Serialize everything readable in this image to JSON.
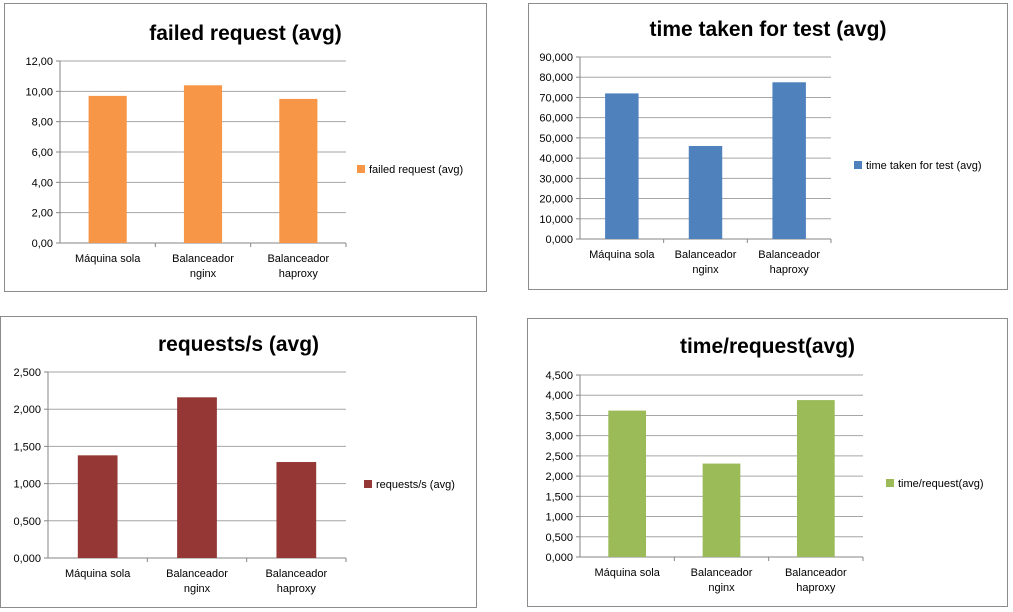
{
  "chart_data": [
    {
      "type": "bar",
      "title": "failed request (avg)",
      "categories": [
        [
          "Máquina sola"
        ],
        [
          "Balanceador",
          "nginx"
        ],
        [
          "Balanceador",
          "haproxy"
        ]
      ],
      "series": [
        {
          "name": "failed request (avg)",
          "values": [
            9.7,
            10.4,
            9.5
          ],
          "color": "#f79646"
        }
      ],
      "yticks": [
        "0,00",
        "2,00",
        "4,00",
        "6,00",
        "8,00",
        "10,00",
        "12,00"
      ],
      "ylim": [
        0,
        12
      ],
      "grid": true,
      "legend": "right"
    },
    {
      "type": "bar",
      "title": "time taken for test (avg)",
      "categories": [
        [
          "Máquina sola"
        ],
        [
          "Balanceador",
          "nginx"
        ],
        [
          "Balanceador",
          "haproxy"
        ]
      ],
      "series": [
        {
          "name": "time taken for test (avg)",
          "values": [
            72.0,
            46.0,
            77.5
          ],
          "color": "#4f81bd"
        }
      ],
      "yticks": [
        "0,000",
        "10,000",
        "20,000",
        "30,000",
        "40,000",
        "50,000",
        "60,000",
        "70,000",
        "80,000",
        "90,000"
      ],
      "ylim": [
        0,
        90
      ],
      "grid": true,
      "legend": "right"
    },
    {
      "type": "bar",
      "title": "requests/s (avg)",
      "categories": [
        [
          "Máquina sola"
        ],
        [
          "Balanceador",
          "nginx"
        ],
        [
          "Balanceador",
          "haproxy"
        ]
      ],
      "series": [
        {
          "name": "requests/s (avg)",
          "values": [
            1.38,
            2.16,
            1.29
          ],
          "color": "#953735"
        }
      ],
      "yticks": [
        "0,000",
        "0,500",
        "1,000",
        "1,500",
        "2,000",
        "2,500"
      ],
      "ylim": [
        0,
        2.5
      ],
      "grid": true,
      "legend": "right"
    },
    {
      "type": "bar",
      "title": "time/request(avg)",
      "categories": [
        [
          "Máquina sola"
        ],
        [
          "Balanceador",
          "nginx"
        ],
        [
          "Balanceador",
          "haproxy"
        ]
      ],
      "series": [
        {
          "name": "time/request(avg)",
          "values": [
            3.62,
            2.31,
            3.88
          ],
          "color": "#9bbb59"
        }
      ],
      "yticks": [
        "0,000",
        "0,500",
        "1,000",
        "1,500",
        "2,000",
        "2,500",
        "3,000",
        "3,500",
        "4,000",
        "4,500"
      ],
      "ylim": [
        0,
        4.5
      ],
      "grid": true,
      "legend": "right"
    }
  ]
}
